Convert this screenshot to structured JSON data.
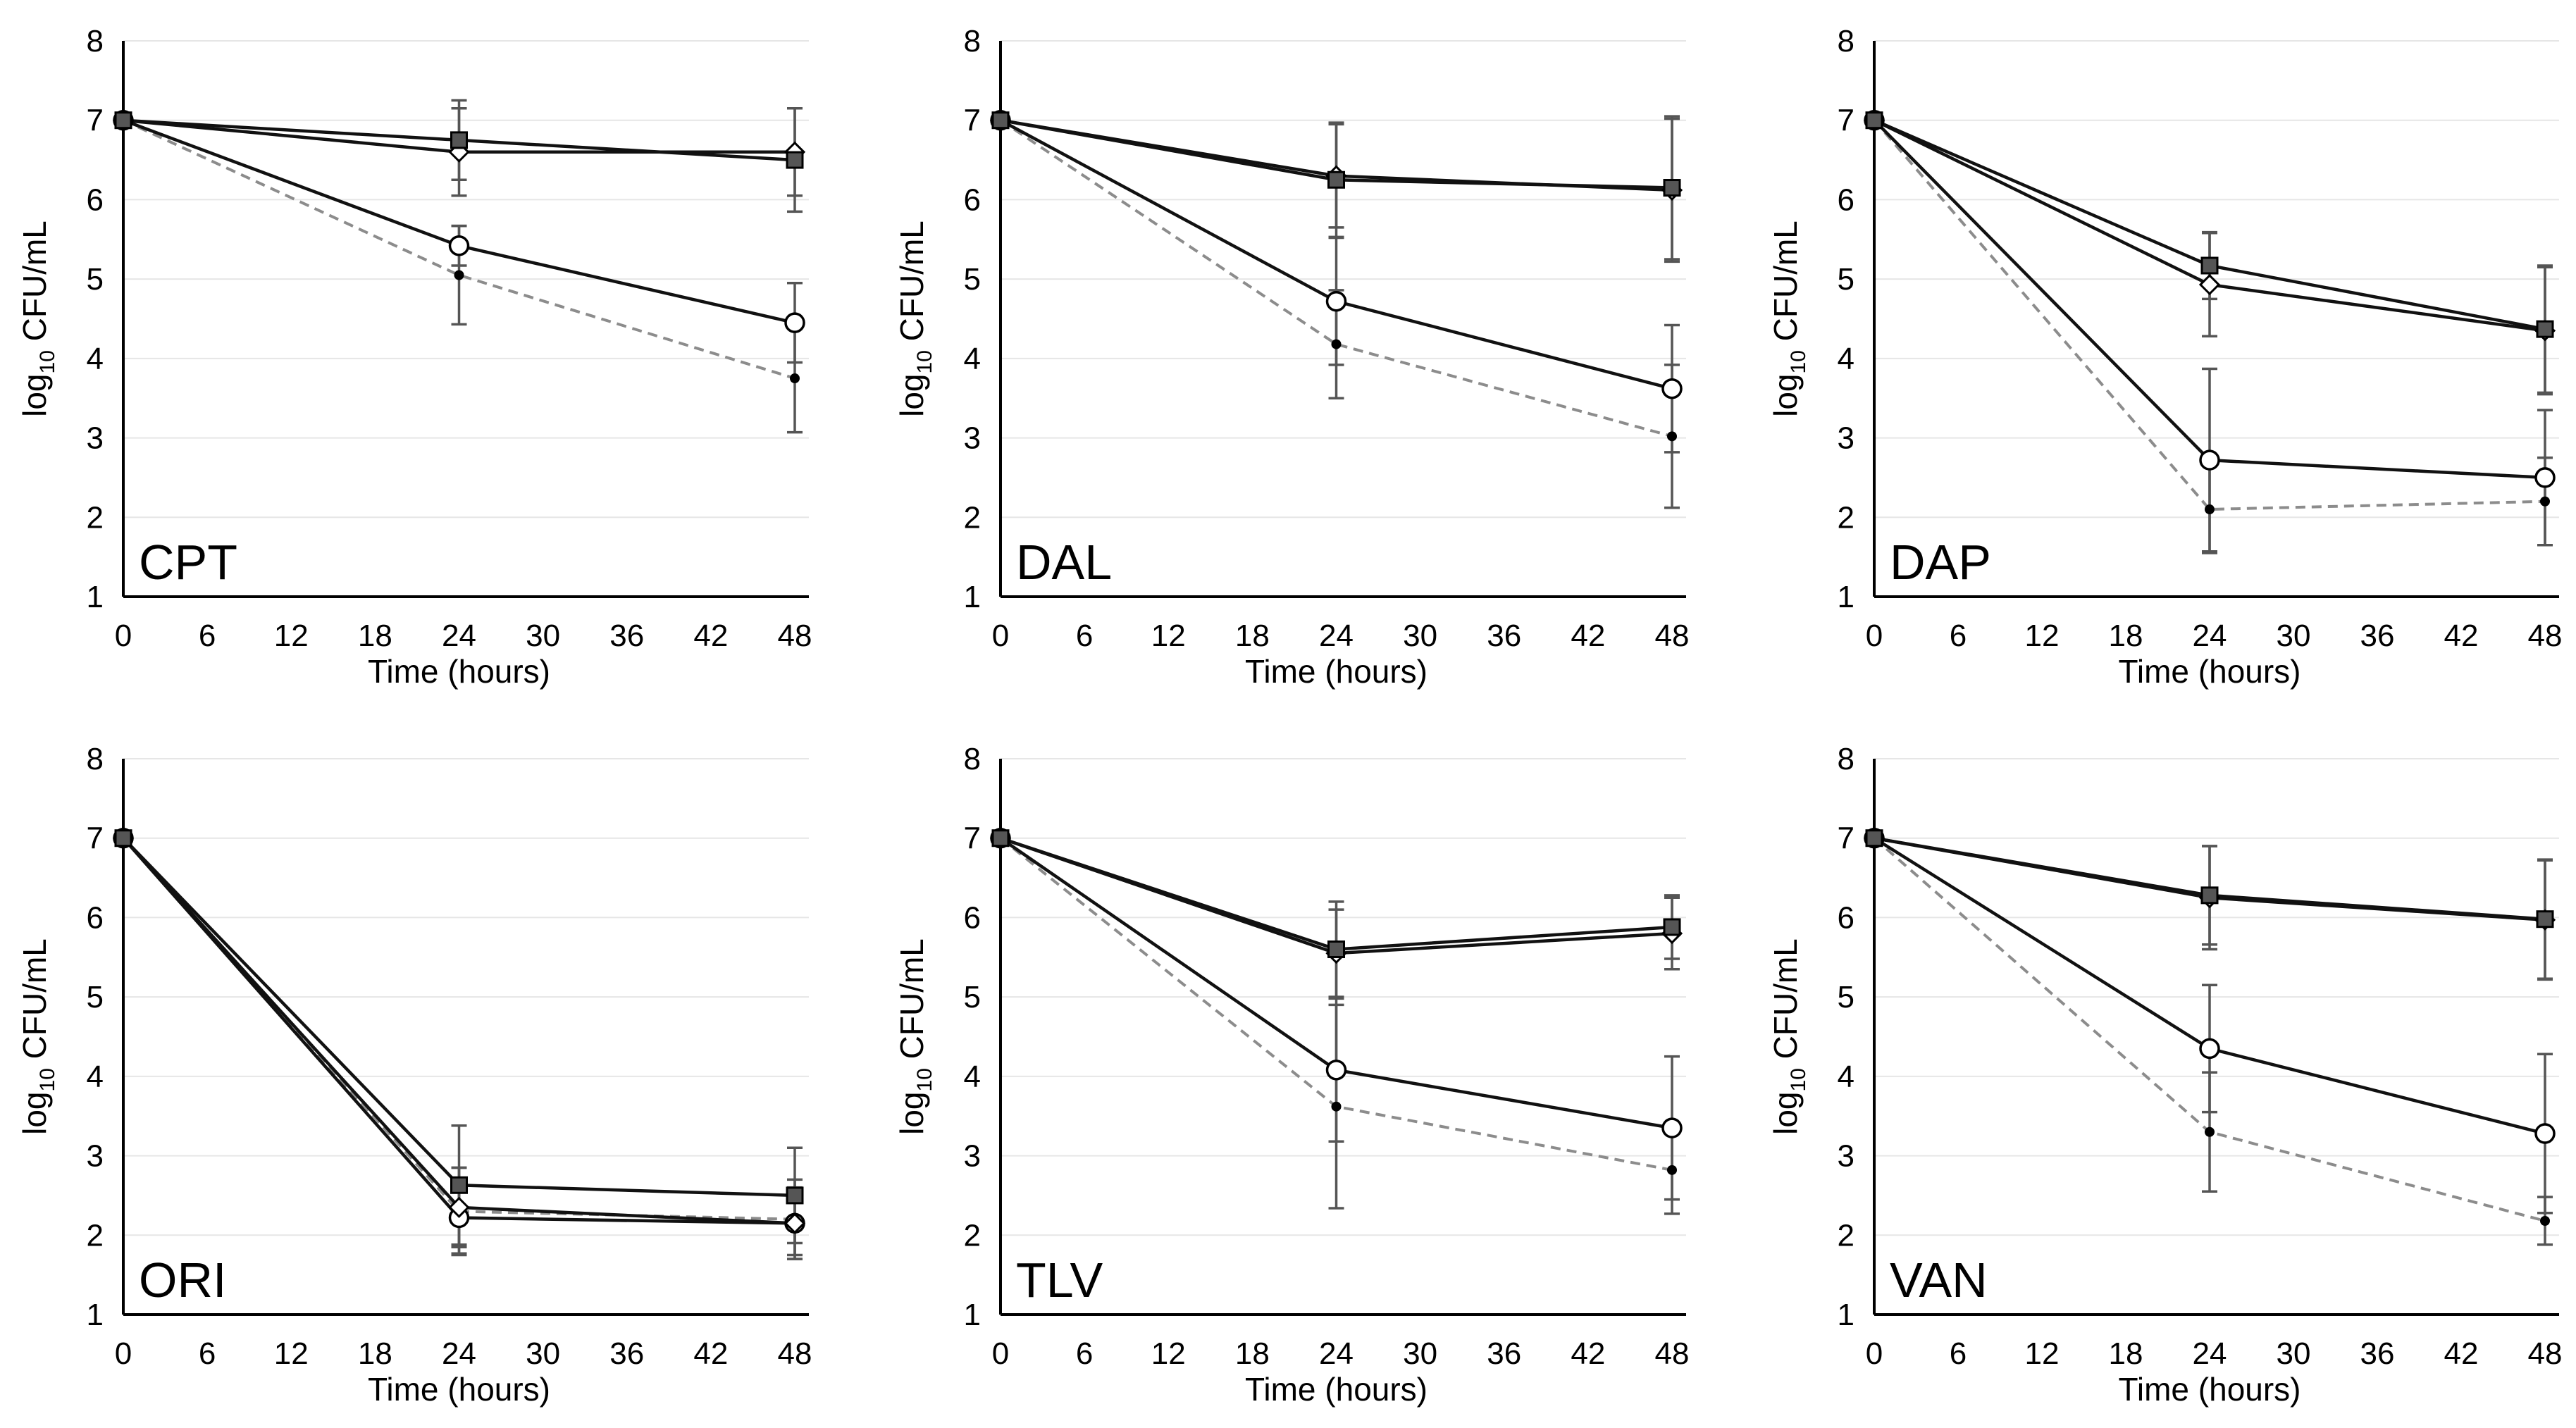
{
  "chart_data": [
    {
      "type": "line",
      "title": "CPT",
      "xlabel": "Time (hours)",
      "ylabel_base": "log",
      "ylabel_sub": "10",
      "ylabel_rest": " CFU/mL",
      "x_ticks": [
        "0",
        "6",
        "12",
        "18",
        "24",
        "30",
        "36",
        "42",
        "48"
      ],
      "y_ticks": [
        "1",
        "2",
        "3",
        "4",
        "5",
        "6",
        "7",
        "8"
      ],
      "xlim": [
        0,
        48
      ],
      "ylim": [
        1,
        8
      ],
      "series": [
        {
          "name": "dots-dashed",
          "x": [
            0,
            24,
            48
          ],
          "y": [
            7.0,
            5.05,
            3.75
          ],
          "err": [
            0,
            0.62,
            0.68
          ]
        },
        {
          "name": "open-circles",
          "x": [
            0,
            24,
            48
          ],
          "y": [
            7.0,
            5.42,
            4.45
          ],
          "err": [
            0,
            0.25,
            0.5
          ]
        },
        {
          "name": "diamonds",
          "x": [
            0,
            24,
            48
          ],
          "y": [
            7.0,
            6.6,
            6.6
          ],
          "err": [
            0,
            0.55,
            0.55
          ]
        },
        {
          "name": "squares",
          "x": [
            0,
            24,
            48
          ],
          "y": [
            7.0,
            6.75,
            6.5
          ],
          "err": [
            0,
            0.5,
            0.65
          ]
        }
      ]
    },
    {
      "type": "line",
      "title": "DAL",
      "xlabel": "Time (hours)",
      "ylabel_base": "log",
      "ylabel_sub": "10",
      "ylabel_rest": " CFU/mL",
      "x_ticks": [
        "0",
        "6",
        "12",
        "18",
        "24",
        "30",
        "36",
        "42",
        "48"
      ],
      "y_ticks": [
        "1",
        "2",
        "3",
        "4",
        "5",
        "6",
        "7",
        "8"
      ],
      "xlim": [
        0,
        48
      ],
      "ylim": [
        1,
        8
      ],
      "series": [
        {
          "name": "dots-dashed",
          "x": [
            0,
            24,
            48
          ],
          "y": [
            7.0,
            4.18,
            3.02
          ],
          "err": [
            0,
            0.68,
            0.9
          ]
        },
        {
          "name": "open-circles",
          "x": [
            0,
            24,
            48
          ],
          "y": [
            7.0,
            4.72,
            3.62
          ],
          "err": [
            0,
            0.8,
            0.8
          ]
        },
        {
          "name": "diamonds",
          "x": [
            0,
            24,
            48
          ],
          "y": [
            7.0,
            6.3,
            6.12
          ],
          "err": [
            0,
            0.65,
            0.9
          ]
        },
        {
          "name": "squares",
          "x": [
            0,
            24,
            48
          ],
          "y": [
            7.0,
            6.25,
            6.15
          ],
          "err": [
            0,
            0.72,
            0.9
          ]
        }
      ]
    },
    {
      "type": "line",
      "title": "DAP",
      "xlabel": "Time (hours)",
      "ylabel_base": "log",
      "ylabel_sub": "10",
      "ylabel_rest": " CFU/mL",
      "x_ticks": [
        "0",
        "6",
        "12",
        "18",
        "24",
        "30",
        "36",
        "42",
        "48"
      ],
      "y_ticks": [
        "1",
        "2",
        "3",
        "4",
        "5",
        "6",
        "7",
        "8"
      ],
      "xlim": [
        0,
        48
      ],
      "ylim": [
        1,
        8
      ],
      "series": [
        {
          "name": "dots-dashed",
          "x": [
            0,
            24,
            48
          ],
          "y": [
            7.0,
            2.1,
            2.2
          ],
          "err": [
            0,
            0.55,
            0.55
          ]
        },
        {
          "name": "open-circles",
          "x": [
            0,
            24,
            48
          ],
          "y": [
            7.0,
            2.72,
            2.5
          ],
          "err": [
            0,
            1.15,
            0.85
          ]
        },
        {
          "name": "diamonds",
          "x": [
            0,
            24,
            48
          ],
          "y": [
            7.0,
            4.93,
            4.35
          ],
          "err": [
            0,
            0.65,
            0.8
          ]
        },
        {
          "name": "squares",
          "x": [
            0,
            24,
            48
          ],
          "y": [
            7.0,
            5.17,
            4.37
          ],
          "err": [
            0,
            0.42,
            0.8
          ]
        }
      ]
    },
    {
      "type": "line",
      "title": "ORI",
      "xlabel": "Time (hours)",
      "ylabel_base": "log",
      "ylabel_sub": "10",
      "ylabel_rest": " CFU/mL",
      "x_ticks": [
        "0",
        "6",
        "12",
        "18",
        "24",
        "30",
        "36",
        "42",
        "48"
      ],
      "y_ticks": [
        "1",
        "2",
        "3",
        "4",
        "5",
        "6",
        "7",
        "8"
      ],
      "xlim": [
        0,
        48
      ],
      "ylim": [
        1,
        8
      ],
      "series": [
        {
          "name": "dots-dashed",
          "x": [
            0,
            24,
            48
          ],
          "y": [
            7.0,
            2.3,
            2.2
          ],
          "err": [
            0,
            0.55,
            0.5
          ]
        },
        {
          "name": "open-circles",
          "x": [
            0,
            24,
            48
          ],
          "y": [
            7.0,
            2.22,
            2.15
          ],
          "err": [
            0,
            0.45,
            0.4
          ]
        },
        {
          "name": "diamonds",
          "x": [
            0,
            24,
            48
          ],
          "y": [
            7.0,
            2.35,
            2.15
          ],
          "err": [
            0,
            0.5,
            0.45
          ]
        },
        {
          "name": "squares",
          "x": [
            0,
            24,
            48
          ],
          "y": [
            7.0,
            2.63,
            2.5
          ],
          "err": [
            0,
            0.75,
            0.6
          ]
        }
      ]
    },
    {
      "type": "line",
      "title": "TLV",
      "xlabel": "Time (hours)",
      "ylabel_base": "log",
      "ylabel_sub": "10",
      "ylabel_rest": " CFU/mL",
      "x_ticks": [
        "0",
        "6",
        "12",
        "18",
        "24",
        "30",
        "36",
        "42",
        "48"
      ],
      "y_ticks": [
        "1",
        "2",
        "3",
        "4",
        "5",
        "6",
        "7",
        "8"
      ],
      "xlim": [
        0,
        48
      ],
      "ylim": [
        1,
        8
      ],
      "series": [
        {
          "name": "dots-dashed",
          "x": [
            0,
            24,
            48
          ],
          "y": [
            7.0,
            3.62,
            2.82
          ],
          "err": [
            0,
            1.28,
            0.55
          ]
        },
        {
          "name": "open-circles",
          "x": [
            0,
            24,
            48
          ],
          "y": [
            7.0,
            4.08,
            3.35
          ],
          "err": [
            0,
            0.9,
            0.9
          ]
        },
        {
          "name": "diamonds",
          "x": [
            0,
            24,
            48
          ],
          "y": [
            7.0,
            5.55,
            5.8
          ],
          "err": [
            0,
            0.55,
            0.45
          ]
        },
        {
          "name": "squares",
          "x": [
            0,
            24,
            48
          ],
          "y": [
            7.0,
            5.6,
            5.88
          ],
          "err": [
            0,
            0.6,
            0.4
          ]
        }
      ]
    },
    {
      "type": "line",
      "title": "VAN",
      "xlabel": "Time (hours)",
      "ylabel_base": "log",
      "ylabel_sub": "10",
      "ylabel_rest": " CFU/mL",
      "x_ticks": [
        "0",
        "6",
        "12",
        "18",
        "24",
        "30",
        "36",
        "42",
        "48"
      ],
      "y_ticks": [
        "1",
        "2",
        "3",
        "4",
        "5",
        "6",
        "7",
        "8"
      ],
      "xlim": [
        0,
        48
      ],
      "ylim": [
        1,
        8
      ],
      "series": [
        {
          "name": "dots-dashed",
          "x": [
            0,
            24,
            48
          ],
          "y": [
            7.0,
            3.3,
            2.18
          ],
          "err": [
            0,
            0.75,
            0.3
          ]
        },
        {
          "name": "open-circles",
          "x": [
            0,
            24,
            48
          ],
          "y": [
            7.0,
            4.35,
            3.28
          ],
          "err": [
            0,
            0.8,
            1.0
          ]
        },
        {
          "name": "diamonds",
          "x": [
            0,
            24,
            48
          ],
          "y": [
            7.0,
            6.25,
            5.97
          ],
          "err": [
            0,
            0.65,
            0.75
          ]
        },
        {
          "name": "squares",
          "x": [
            0,
            24,
            48
          ],
          "y": [
            7.0,
            6.28,
            5.98
          ],
          "err": [
            0,
            0.62,
            0.75
          ]
        }
      ]
    }
  ],
  "colors": {
    "axis": "#000000",
    "gridline": "#e6e6e6",
    "solid_line": "#111111",
    "dashed_line": "#8c8c8c",
    "error_bar": "#555555",
    "square_fill": "#555555",
    "open_marker_fill": "#ffffff"
  }
}
